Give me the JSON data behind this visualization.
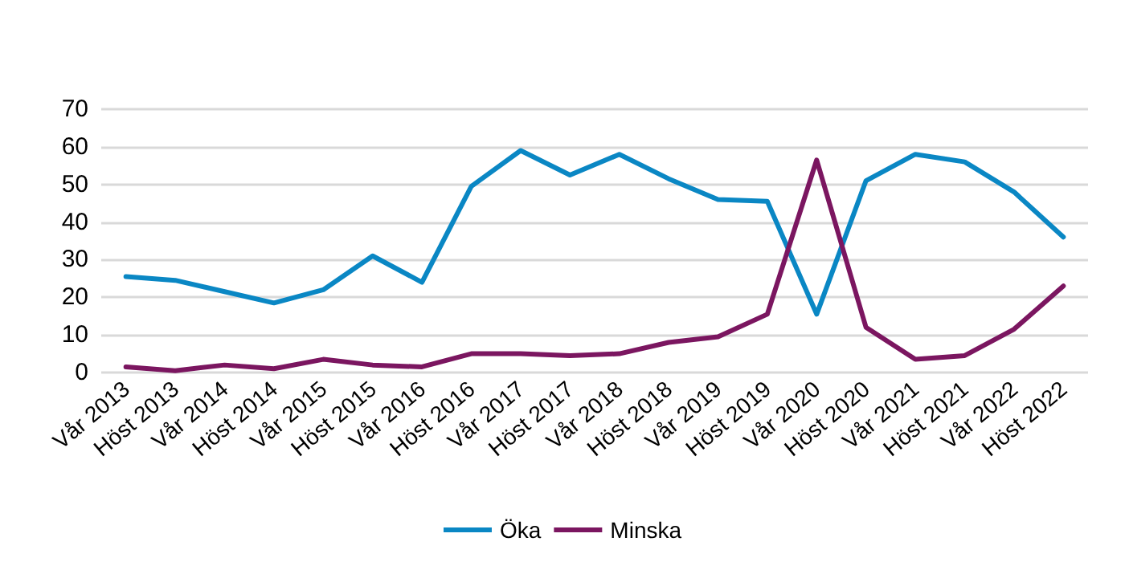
{
  "chart_data": {
    "type": "line",
    "categories": [
      "Vår 2013",
      "Höst 2013",
      "Vår 2014",
      "Höst 2014",
      "Vår 2015",
      "Höst 2015",
      "Vår 2016",
      "Höst 2016",
      "Vår 2017",
      "Höst 2017",
      "Vår 2018",
      "Höst 2018",
      "Vår 2019",
      "Höst 2019",
      "Vår 2020",
      "Höst 2020",
      "Vår 2021",
      "Höst 2021",
      "Vår 2022",
      "Höst 2022"
    ],
    "series": [
      {
        "name": "Öka",
        "color": "#0a87c4",
        "values": [
          25.5,
          24.5,
          21.5,
          18.5,
          22,
          31,
          24,
          49.5,
          59,
          52.5,
          58,
          51.5,
          46,
          45.5,
          15.5,
          51,
          58,
          56,
          48,
          36
        ]
      },
      {
        "name": "Minska",
        "color": "#7b1660",
        "values": [
          1.5,
          0.5,
          2,
          1,
          3.5,
          2,
          1.5,
          5,
          5,
          4.5,
          5,
          8,
          9.5,
          15.5,
          56.5,
          12,
          3.5,
          4.5,
          11.5,
          23
        ]
      }
    ],
    "ylim": [
      0,
      70
    ],
    "yticks": [
      0,
      10,
      20,
      30,
      40,
      50,
      60,
      70
    ],
    "grid": "y",
    "legend": "bottom",
    "marker": "none",
    "line_style": "solid"
  }
}
